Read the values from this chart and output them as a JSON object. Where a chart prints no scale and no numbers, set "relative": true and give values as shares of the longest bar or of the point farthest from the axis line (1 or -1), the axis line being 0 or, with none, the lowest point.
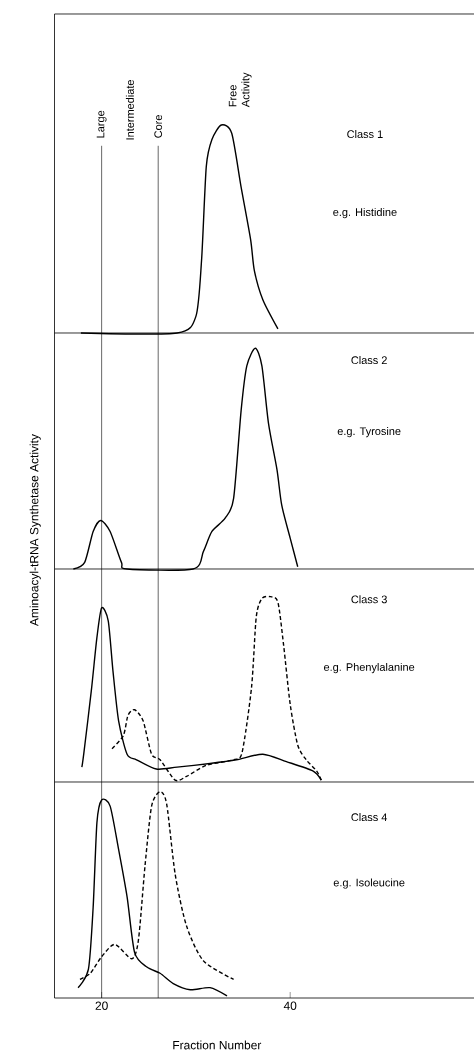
{
  "chart_data": [
    {
      "type": "line",
      "title": "Class 1",
      "subtitle": "e.g. Histidine",
      "relative": true,
      "xlim": [
        15,
        59.5
      ],
      "tick_labels": false,
      "series": [
        {
          "color": "#000000",
          "line_style": "solid",
          "x": [
            17.8,
            28,
            30.0,
            30.6,
            31.1,
            31.7,
            32.7,
            33.8,
            34.8,
            35.8,
            36.2,
            37.1,
            38.7
          ],
          "values": [
            0,
            0,
            0.08,
            0.35,
            0.8,
            0.93,
            1.0,
            0.96,
            0.7,
            0.45,
            0.3,
            0.16,
            0.02
          ]
        }
      ],
      "ref_lines": [
        {
          "axis": "x",
          "value": 20,
          "label": "Large"
        },
        {
          "axis": "x",
          "value": 26,
          "label": "Core"
        }
      ],
      "annotations": [
        "Intermediate",
        "Free Activity"
      ]
    },
    {
      "type": "line",
      "title": "Class 2",
      "subtitle": "e.g. Tyrosine",
      "ylabel": "Aminoacyl-tRNA Synthetase Activity",
      "relative": true,
      "xlim": [
        15,
        59.5
      ],
      "tick_labels": false,
      "series": [
        {
          "color": "#000000",
          "line_style": "solid",
          "x": [
            17.0,
            18.2,
            19.1,
            19.9,
            20.9,
            22.1,
            22.7,
            29.7,
            30.8,
            31.7,
            33.1,
            34.0,
            34.8,
            35.4,
            36.3,
            37.0,
            37.7,
            38.6,
            39.1,
            40.0,
            40.8
          ],
          "values": [
            0,
            0.03,
            0.17,
            0.22,
            0.17,
            0.03,
            0,
            0,
            0.08,
            0.17,
            0.23,
            0.32,
            0.72,
            0.92,
            1.0,
            0.92,
            0.66,
            0.45,
            0.29,
            0.14,
            0.01
          ]
        }
      ],
      "ref_lines": [
        {
          "axis": "x",
          "value": 20
        },
        {
          "axis": "x",
          "value": 26
        }
      ]
    },
    {
      "type": "line",
      "title": "Class 3",
      "subtitle": "e.g. Phenylalanine",
      "relative": true,
      "xlim": [
        15,
        59.5
      ],
      "tick_labels": false,
      "series": [
        {
          "color": "#000000",
          "line_style": "solid",
          "x": [
            17.9,
            18.1,
            18.9,
            19.5,
            20.0,
            20.7,
            21.2,
            21.8,
            22.7,
            23.7,
            25.8,
            28.0,
            31.5,
            34.3,
            37.1,
            39.6,
            42.4,
            43.3
          ],
          "values": [
            0.08,
            0.15,
            0.49,
            0.78,
            0.94,
            0.87,
            0.6,
            0.33,
            0.15,
            0.12,
            0.07,
            0.08,
            0.1,
            0.12,
            0.15,
            0.11,
            0.06,
            0.01
          ]
        },
        {
          "color": "#000000",
          "line_style": "dashed",
          "x": [
            21.1,
            22.3,
            22.8,
            23.5,
            24.4,
            25.3,
            26.2,
            27.8,
            29.0,
            31.1,
            34.0,
            34.9,
            35.9,
            36.4,
            37.0,
            37.9,
            38.7,
            39.3,
            40.0,
            40.8,
            41.7,
            42.8,
            43.3
          ],
          "values": [
            0.18,
            0.25,
            0.36,
            0.39,
            0.33,
            0.15,
            0.12,
            0.01,
            0.03,
            0.09,
            0.12,
            0.16,
            0.51,
            0.89,
            0.99,
            1.0,
            0.97,
            0.74,
            0.42,
            0.2,
            0.12,
            0.06,
            0.01
          ]
        }
      ],
      "ref_lines": [
        {
          "axis": "x",
          "value": 20
        },
        {
          "axis": "x",
          "value": 26
        }
      ]
    },
    {
      "type": "line",
      "title": "Class 4",
      "subtitle": "e.g. Isoleucine",
      "xlabel": "Fraction Number",
      "relative": true,
      "xlim": [
        15,
        59.5
      ],
      "xticks": [
        20,
        40
      ],
      "tick_labels": "x",
      "series": [
        {
          "color": "#000000",
          "line_style": "solid",
          "x": [
            17.5,
            18.6,
            19.1,
            19.5,
            20.0,
            20.9,
            21.8,
            22.7,
            23.5,
            24.8,
            26.2,
            27.6,
            29.4,
            31.5,
            33.3
          ],
          "values": [
            0.05,
            0.14,
            0.44,
            0.85,
            0.96,
            0.93,
            0.72,
            0.49,
            0.22,
            0.15,
            0.12,
            0.07,
            0.04,
            0.05,
            0.01
          ]
        },
        {
          "color": "#000000",
          "line_style": "dashed",
          "x": [
            17.7,
            18.8,
            20.0,
            21.4,
            23.2,
            23.9,
            24.6,
            25.3,
            26.2,
            26.9,
            27.8,
            29.0,
            30.8,
            34.0
          ],
          "values": [
            0.09,
            0.12,
            0.2,
            0.26,
            0.19,
            0.28,
            0.64,
            0.93,
            1.0,
            0.94,
            0.6,
            0.35,
            0.18,
            0.09
          ]
        }
      ],
      "ref_lines": [
        {
          "axis": "x",
          "value": 20
        },
        {
          "axis": "x",
          "value": 26
        }
      ]
    }
  ]
}
